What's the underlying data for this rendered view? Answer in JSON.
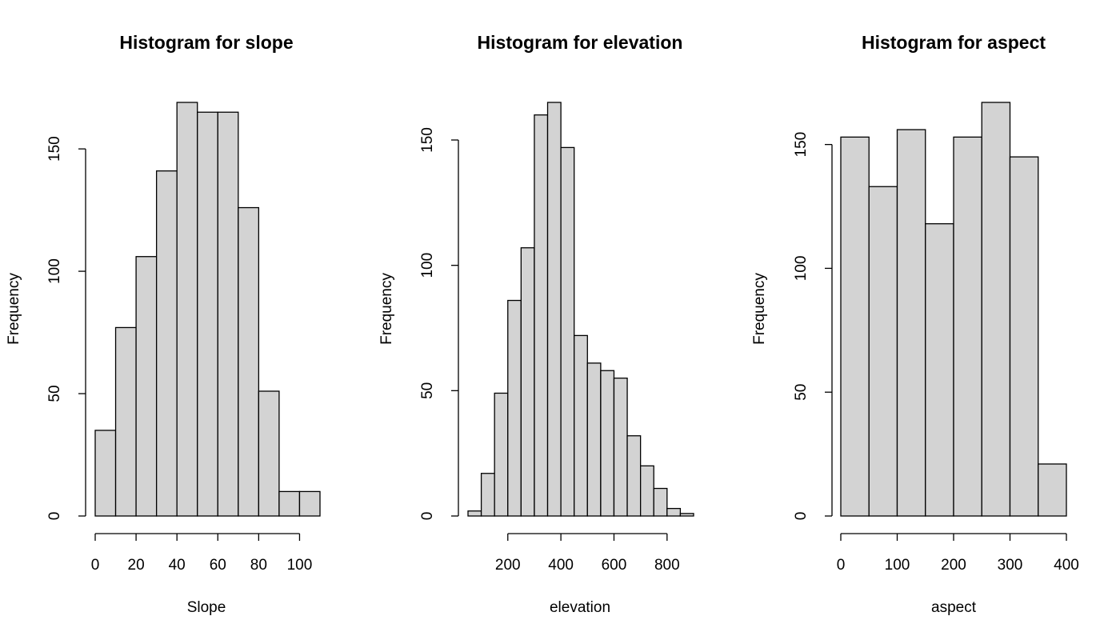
{
  "chart_data": [
    {
      "type": "histogram",
      "title": "Histogram for slope",
      "xlabel": "Slope",
      "ylabel": "Frequency",
      "bins": [
        0,
        10,
        20,
        30,
        40,
        50,
        60,
        70,
        80,
        90,
        100,
        110
      ],
      "counts": [
        35,
        77,
        106,
        141,
        169,
        165,
        165,
        126,
        51,
        10,
        10
      ],
      "color": "#d3d3d3",
      "xlim": [
        0,
        110
      ],
      "ylim": [
        0,
        169
      ],
      "xticks": [
        0,
        20,
        40,
        60,
        80,
        100
      ],
      "yticks": [
        0,
        50,
        100,
        150
      ]
    },
    {
      "type": "histogram",
      "title": "Histogram for elevation",
      "xlabel": "elevation",
      "ylabel": "Frequency",
      "bins": [
        50,
        100,
        150,
        200,
        250,
        300,
        350,
        400,
        450,
        500,
        550,
        600,
        650,
        700,
        750,
        800,
        850,
        900
      ],
      "counts": [
        2,
        17,
        49,
        86,
        107,
        160,
        165,
        147,
        72,
        61,
        58,
        55,
        32,
        20,
        11,
        3,
        1
      ],
      "color": "#d3d3d3",
      "xlim": [
        50,
        900
      ],
      "ylim": [
        0,
        165
      ],
      "xticks": [
        200,
        400,
        600,
        800
      ],
      "yticks": [
        0,
        50,
        100,
        150
      ]
    },
    {
      "type": "histogram",
      "title": "Histogram for aspect",
      "xlabel": "aspect",
      "ylabel": "Frequency",
      "bins": [
        0,
        50,
        100,
        150,
        200,
        250,
        300,
        350,
        400
      ],
      "counts": [
        153,
        133,
        156,
        118,
        153,
        167,
        145,
        21
      ],
      "color": "#d3d3d3",
      "xlim": [
        0,
        400
      ],
      "ylim": [
        0,
        167
      ],
      "xticks": [
        0,
        100,
        200,
        300,
        400
      ],
      "yticks": [
        0,
        50,
        100,
        150
      ]
    }
  ]
}
